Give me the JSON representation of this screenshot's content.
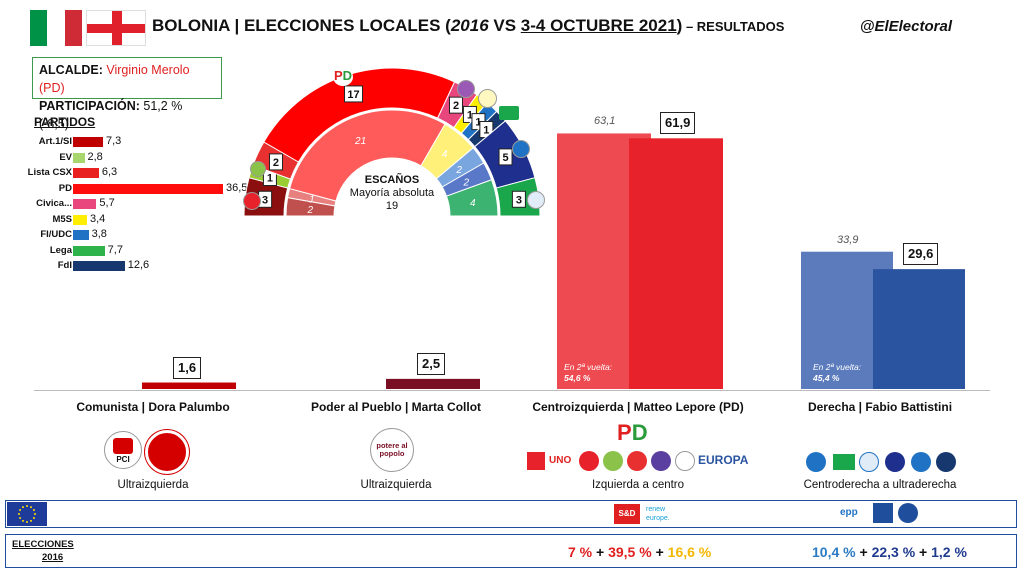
{
  "header": {
    "city": "BOLONIA",
    "sep": " | ",
    "election": "ELECCIONES LOCALES (",
    "year_old": "2016",
    "vs": " VS ",
    "dates": "3-4 OCTUBRE 2021",
    "close": ")",
    "suffix": " – RESULTADOS",
    "handle": "@ElElectoral"
  },
  "info": {
    "mayor_label": "ALCALDE:",
    "mayor_value": "Virginio Merolo (PD)",
    "turnout_label": "PARTICIPACIÓN:",
    "turnout_value": "51,2 % (-8,5)"
  },
  "parties": {
    "heading": "PARTIDOS",
    "items": [
      {
        "name": "Art.1/SI",
        "value": 7.3,
        "label": "7,3",
        "color": "#c00000"
      },
      {
        "name": "EV",
        "value": 2.8,
        "label": "2,8",
        "color": "#a6d66c"
      },
      {
        "name": "Lista CSX",
        "value": 6.3,
        "label": "6,3",
        "color": "#e82020"
      },
      {
        "name": "PD",
        "value": 36.5,
        "label": "36,5",
        "color": "#ff0d0d"
      },
      {
        "name": "Civica...",
        "value": 5.7,
        "label": "5,7",
        "color": "#e8467c"
      },
      {
        "name": "M5S",
        "value": 3.4,
        "label": "3,4",
        "color": "#ffee00"
      },
      {
        "name": "FI/UDC",
        "value": 3.8,
        "label": "3,8",
        "color": "#1f72c4"
      },
      {
        "name": "Lega",
        "value": 7.7,
        "label": "7,7",
        "color": "#2db34a"
      },
      {
        "name": "FdI",
        "value": 12.6,
        "label": "12,6",
        "color": "#16386e"
      }
    ]
  },
  "seats": {
    "title": "ESCAÑOS",
    "majority_label": "Mayoría absoluta",
    "majority_value": "19",
    "outer": [
      {
        "value": "3",
        "color": "#8b0f0f"
      },
      {
        "value": "1",
        "color": "#9acd32"
      },
      {
        "value": "2",
        "color": "#e83030"
      },
      {
        "value": "17",
        "color": "#ff0000"
      },
      {
        "value": "2",
        "color": "#e8467c"
      },
      {
        "value": "1",
        "color": "#ffee00"
      },
      {
        "value": "1",
        "color": "#1f72c4"
      },
      {
        "value": "1",
        "color": "#16386e"
      },
      {
        "value": "5",
        "color": "#1f2f8e"
      },
      {
        "value": "3",
        "color": "#1aa64a"
      }
    ],
    "inner": [
      {
        "value": "2",
        "color": "#c0504d"
      },
      {
        "value": "1",
        "color": "#e88080"
      },
      {
        "value": "21",
        "color": "#ff5b5b"
      },
      {
        "value": "4",
        "color": "#fff07a"
      },
      {
        "value": "2",
        "color": "#7aa6e0"
      },
      {
        "value": "2",
        "color": "#5a78c8"
      },
      {
        "value": "4",
        "color": "#3cb371"
      }
    ]
  },
  "chart_data": {
    "type": "bar",
    "categories": [
      "Comunista | Dora Palumbo",
      "Poder al Pueblo | Marta Collot",
      "Centroizquierda | Matteo Lepore (PD)",
      "Derecha | Fabio Battistini"
    ],
    "series": [
      {
        "values": [
          null,
          null,
          63.1,
          33.9
        ],
        "labels": [
          "",
          "",
          "63,1",
          "33,9"
        ]
      },
      {
        "values": [
          1.6,
          2.5,
          61.9,
          29.6
        ],
        "labels": [
          "1,6",
          "2,5",
          "61,9",
          "29,6"
        ]
      }
    ],
    "second_round": [
      {
        "label": "En 2ª vuelta:",
        "value": "54,6 %"
      },
      {
        "label": "En 2ª vuelta:",
        "value": "45,4 %"
      }
    ],
    "ideology": [
      "Ultraizquierda",
      "Ultraizquierda",
      "Izquierda a centro",
      "Centroderecha a ultraderecha"
    ],
    "colors": {
      "old": [
        "#c00000",
        "#7a0f24",
        "#ee4a52",
        "#5b7bbd"
      ],
      "new": [
        "#c00000",
        "#7a0f24",
        "#e8222a",
        "#2b54a0"
      ]
    }
  },
  "logos": {
    "pci": "PCI",
    "potere": "potere al popolo",
    "sd": "S&D",
    "renew": "renew europe.",
    "epp": "epp"
  },
  "elections2016": {
    "label": "ELECCIONES",
    "year": "2016",
    "left_a": "7 %",
    "plus": " + ",
    "left_b": "39,5 %",
    "left_c": "16,6 %",
    "right_a": "10,4 %",
    "right_b": "22,3 %",
    "right_c": "1,2 %"
  }
}
